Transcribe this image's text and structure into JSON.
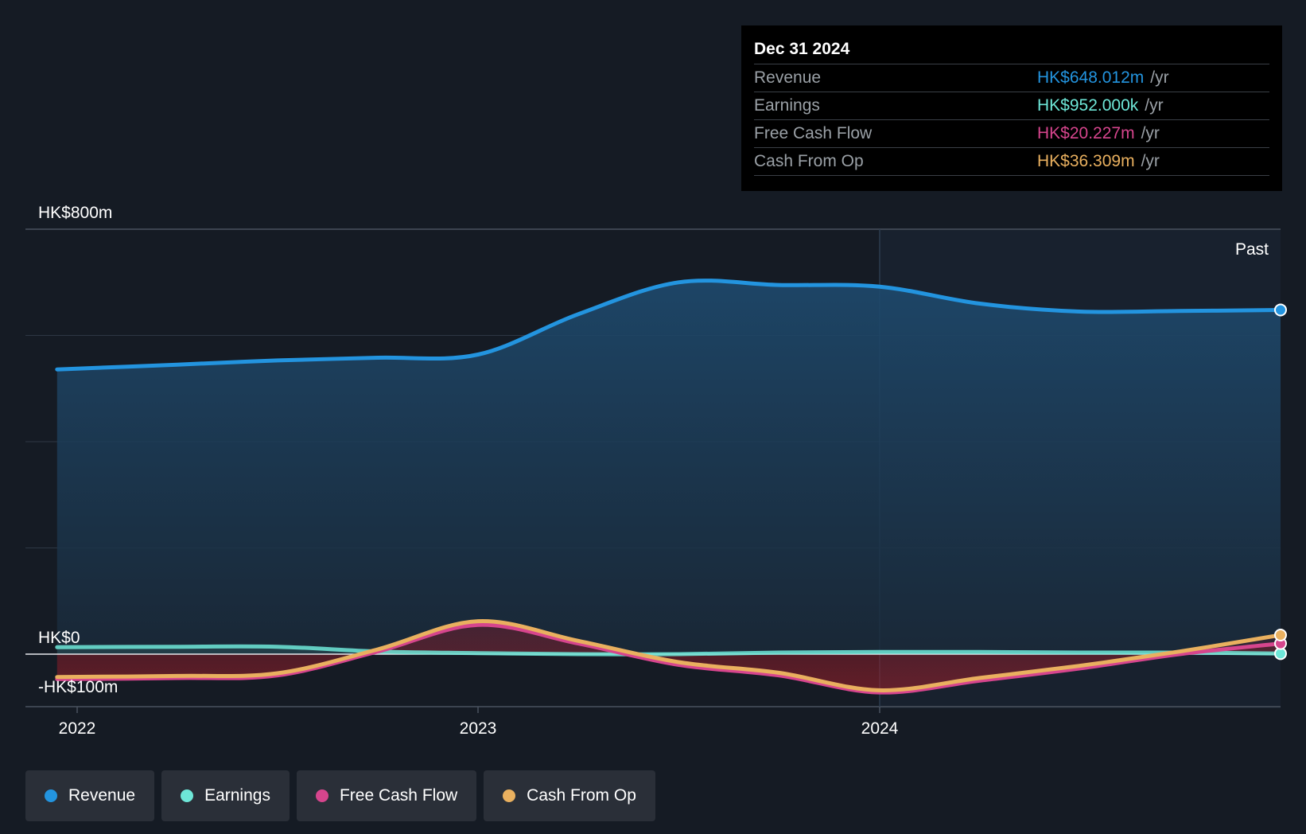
{
  "chart_data": {
    "type": "line",
    "currency": "HK$",
    "ylim": [
      -100,
      800
    ],
    "y_tick_labels": [
      "HK$800m",
      "HK$0",
      "-HK$100m"
    ],
    "x_tick_labels": [
      "2022",
      "2023",
      "2024"
    ],
    "past_label": "Past",
    "x": [
      2021.95,
      2022.25,
      2022.5,
      2022.75,
      2023.0,
      2023.25,
      2023.5,
      2023.75,
      2024.0,
      2024.25,
      2024.5,
      2024.75,
      2025.0
    ],
    "series": [
      {
        "name": "Revenue",
        "color": "#2394df",
        "values": [
          536,
          545,
          553,
          558,
          564,
          640,
          700,
          695,
          692,
          660,
          645,
          646,
          648
        ]
      },
      {
        "name": "Earnings",
        "color": "#6ee7d8",
        "values": [
          13,
          14,
          14,
          5,
          2,
          0,
          0,
          3,
          4,
          4,
          3,
          3,
          1
        ]
      },
      {
        "name": "Free Cash Flow",
        "color": "#d6458d",
        "values": [
          -47,
          -45,
          -40,
          5,
          55,
          20,
          -20,
          -40,
          -72,
          -50,
          -27,
          0,
          20
        ]
      },
      {
        "name": "Cash From Op",
        "color": "#e9b05f",
        "values": [
          -43,
          -41,
          -36,
          9,
          62,
          25,
          -15,
          -35,
          -68,
          -45,
          -22,
          5,
          36
        ]
      }
    ]
  },
  "tooltip": {
    "date": "Dec 31 2024",
    "rows": [
      {
        "name": "Revenue",
        "value": "HK$648.012m",
        "unit": "/yr",
        "color": "#2394df"
      },
      {
        "name": "Earnings",
        "value": "HK$952.000k",
        "unit": "/yr",
        "color": "#6ee7d8"
      },
      {
        "name": "Free Cash Flow",
        "value": "HK$20.227m",
        "unit": "/yr",
        "color": "#d6458d"
      },
      {
        "name": "Cash From Op",
        "value": "HK$36.309m",
        "unit": "/yr",
        "color": "#e9b05f"
      }
    ]
  },
  "legend": [
    {
      "label": "Revenue",
      "color": "#2394df"
    },
    {
      "label": "Earnings",
      "color": "#6ee7d8"
    },
    {
      "label": "Free Cash Flow",
      "color": "#d6458d"
    },
    {
      "label": "Cash From Op",
      "color": "#e9b05f"
    }
  ]
}
